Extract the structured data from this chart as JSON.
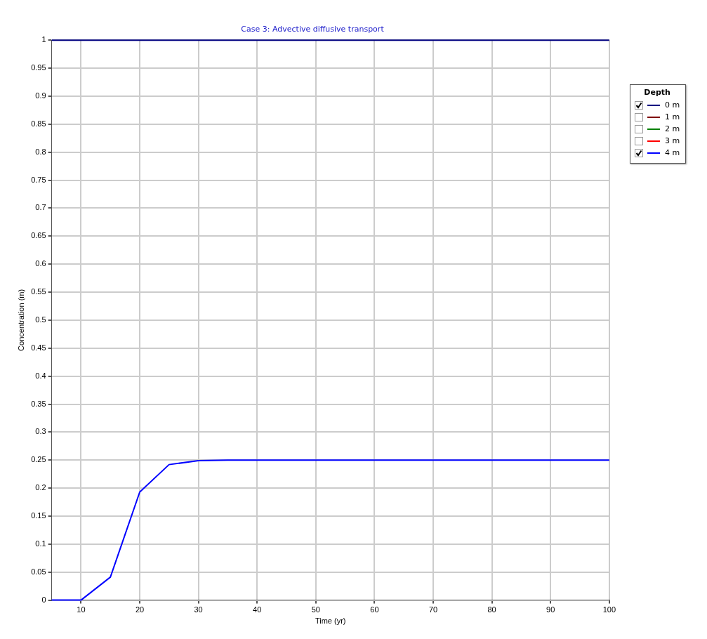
{
  "chart_data": {
    "type": "line",
    "title": "Case 3: Advective diffusive transport",
    "xlabel": "Time (yr)",
    "ylabel": "Concentration (m)",
    "legend_title": "Depth",
    "legend": "right",
    "grid": true,
    "marker": "none",
    "line_style": "solid",
    "x": [
      5,
      10,
      15,
      20,
      25,
      30,
      35,
      40,
      45,
      50,
      55,
      60,
      65,
      70,
      75,
      80,
      85,
      90,
      95,
      100
    ],
    "xlim": [
      5,
      100
    ],
    "xticks": [
      10,
      20,
      30,
      40,
      50,
      60,
      70,
      80,
      90,
      100
    ],
    "ylim": [
      0,
      1
    ],
    "yticks": [
      0,
      0.05,
      0.1,
      0.15,
      0.2,
      0.25,
      0.3,
      0.35,
      0.4,
      0.45,
      0.5,
      0.55,
      0.6,
      0.65,
      0.7,
      0.75,
      0.8,
      0.85,
      0.9,
      0.95,
      1
    ],
    "series": [
      {
        "name": "0 m",
        "color": "#000080",
        "values": [
          1,
          1,
          1,
          1,
          1,
          1,
          1,
          1,
          1,
          1,
          1,
          1,
          1,
          1,
          1,
          1,
          1,
          1,
          1,
          1
        ]
      },
      {
        "name": "1 m",
        "color": "#800000",
        "values": [
          null,
          null,
          null,
          null,
          null,
          null,
          null,
          null,
          null,
          null,
          null,
          null,
          null,
          null,
          null,
          null,
          null,
          null,
          null,
          null
        ]
      },
      {
        "name": "2 m",
        "color": "#008000",
        "values": [
          null,
          null,
          null,
          null,
          null,
          null,
          null,
          null,
          null,
          null,
          null,
          null,
          null,
          null,
          null,
          null,
          null,
          null,
          null,
          null
        ]
      },
      {
        "name": "3 m",
        "color": "#ff0000",
        "values": [
          null,
          null,
          null,
          null,
          null,
          null,
          null,
          null,
          null,
          null,
          null,
          null,
          null,
          null,
          null,
          null,
          null,
          null,
          null,
          null
        ]
      },
      {
        "name": "4 m",
        "color": "#0000ff",
        "values": [
          0,
          0,
          0.041,
          0.193,
          0.242,
          0.249,
          0.25,
          0.25,
          0.25,
          0.25,
          0.25,
          0.25,
          0.25,
          0.25,
          0.25,
          0.25,
          0.25,
          0.25,
          0.25,
          0.25
        ]
      }
    ]
  }
}
